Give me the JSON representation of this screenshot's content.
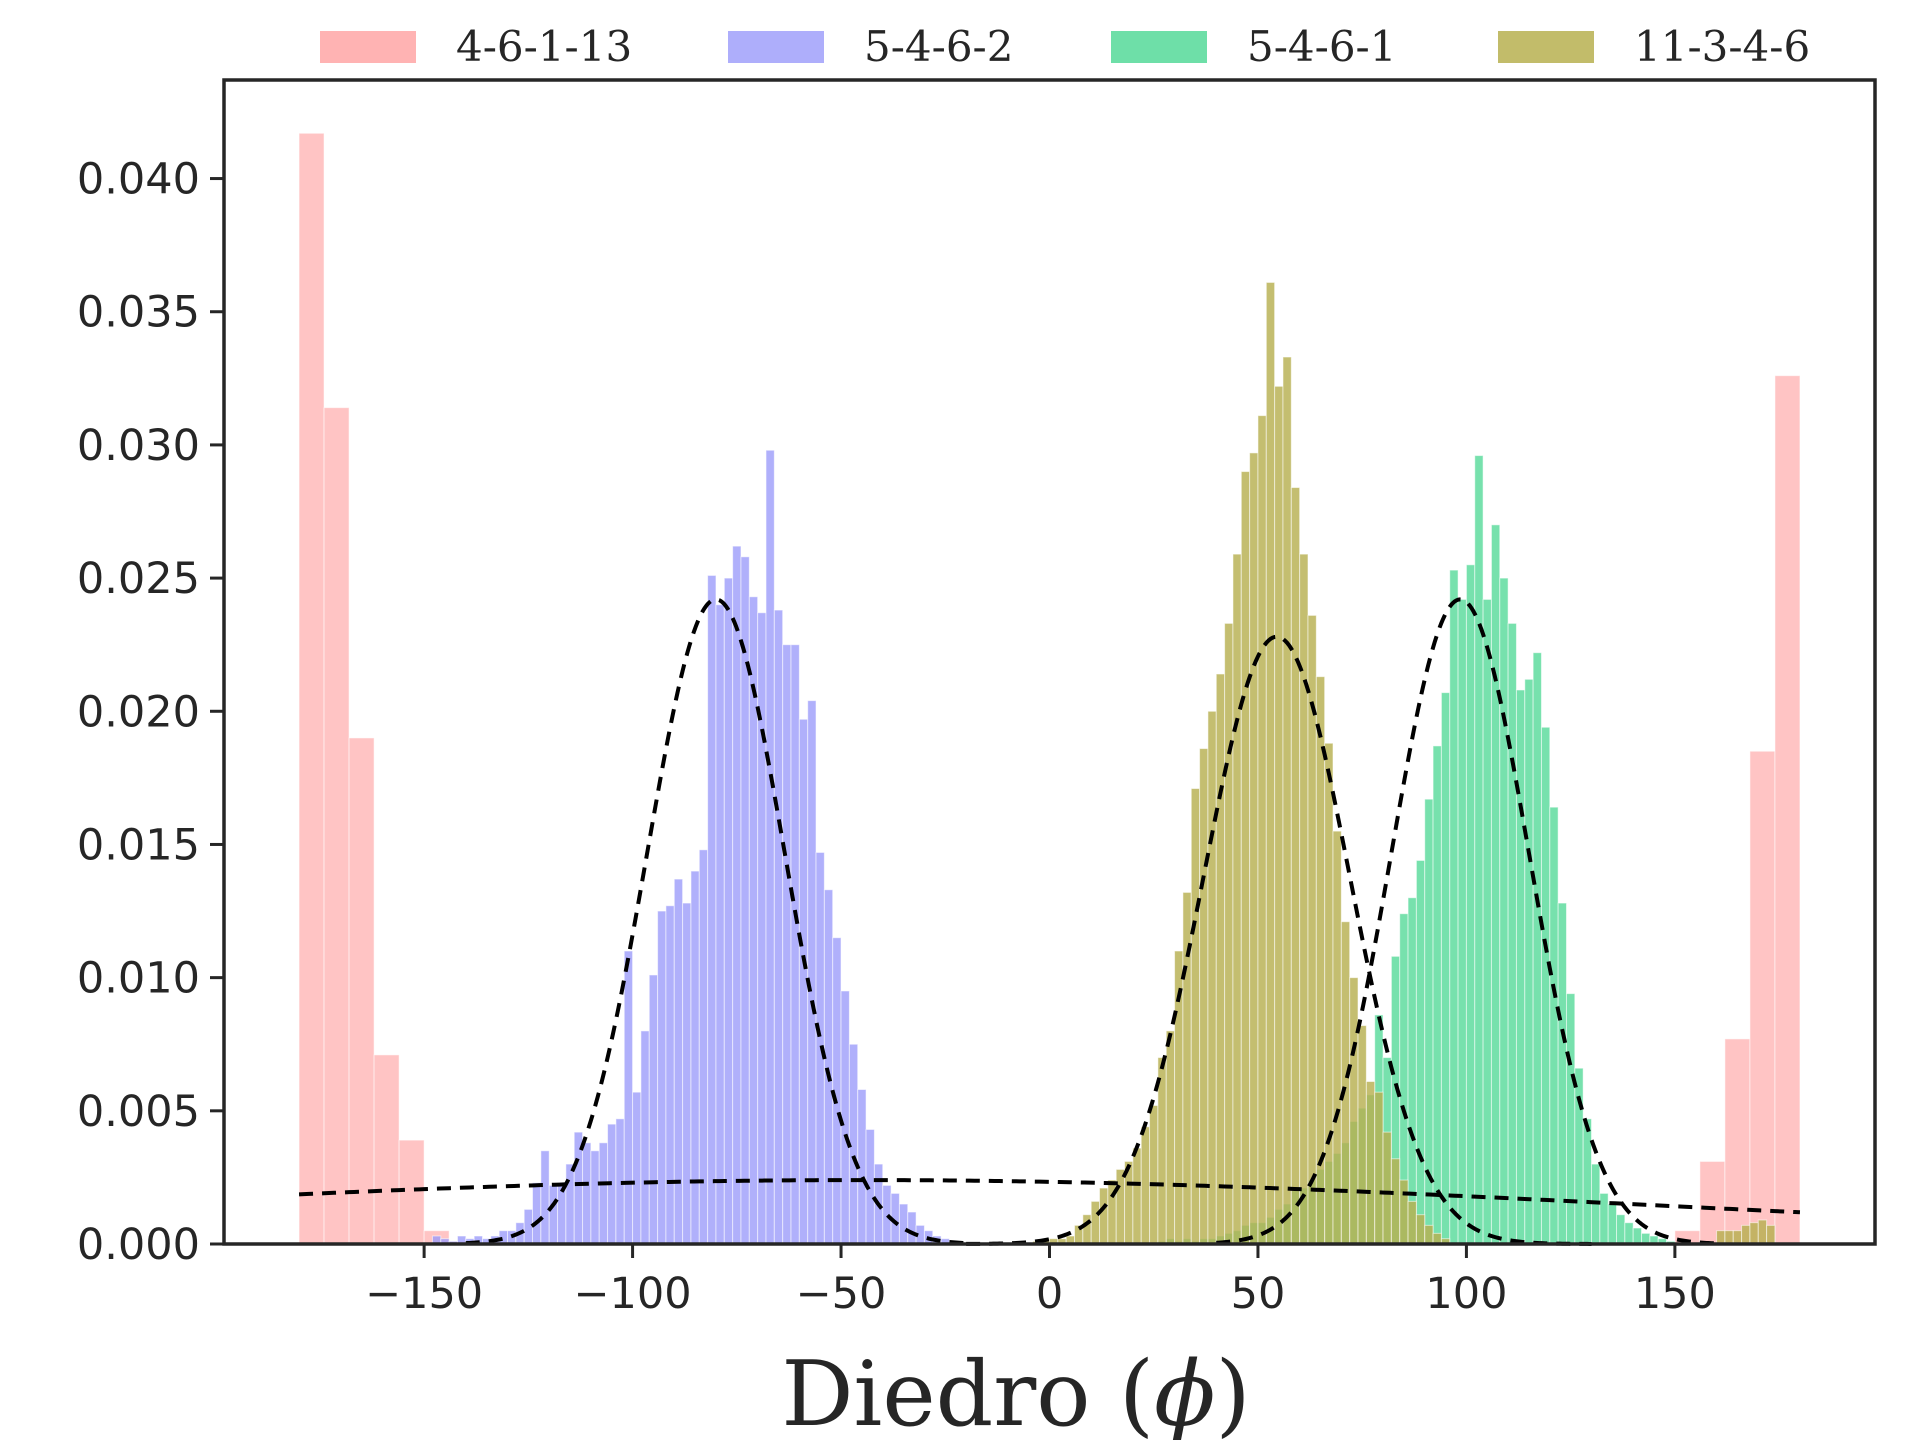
{
  "chart_data": {
    "type": "bar",
    "title": "",
    "xlabel": "Diedro",
    "xlabel_symbol": "ϕ",
    "ylabel": "",
    "xlim": [
      -198,
      198
    ],
    "ylim": [
      0,
      0.0437
    ],
    "grid": false,
    "legend_placement": "top-center, above axes",
    "xticks": [
      -150,
      -100,
      -50,
      0,
      50,
      100,
      150
    ],
    "yticks": [
      0.0,
      0.005,
      0.01,
      0.015,
      0.02,
      0.025,
      0.03,
      0.035,
      0.04
    ],
    "series": [
      {
        "name": "4-6-1-13",
        "color": "#ffb3b3",
        "bins": [
          [
            -180,
            -174,
            0.0417
          ],
          [
            -174,
            -168,
            0.0314
          ],
          [
            -168,
            -162,
            0.019
          ],
          [
            -162,
            -156,
            0.0071
          ],
          [
            -156,
            -150,
            0.0039
          ],
          [
            -150,
            -144,
            0.0005
          ],
          [
            -144,
            -138,
            0.0001
          ],
          [
            150,
            156,
            0.0005
          ],
          [
            156,
            162,
            0.0031
          ],
          [
            162,
            168,
            0.0077
          ],
          [
            168,
            174,
            0.0185
          ],
          [
            174,
            180,
            0.0326
          ]
        ]
      },
      {
        "name": "5-4-6-2",
        "color": "#9a9afa",
        "bins": [
          [
            -148,
            -146,
            0.0003
          ],
          [
            -146,
            -144,
            0.0002
          ],
          [
            -144,
            -142,
            0.0001
          ],
          [
            -142,
            -140,
            0.0003
          ],
          [
            -140,
            -138,
            0.0002
          ],
          [
            -138,
            -136,
            0.0003
          ],
          [
            -136,
            -134,
            0.0002
          ],
          [
            -134,
            -132,
            0.0003
          ],
          [
            -132,
            -130,
            0.0005
          ],
          [
            -130,
            -128,
            0.0005
          ],
          [
            -128,
            -126,
            0.0008
          ],
          [
            -126,
            -124,
            0.0013
          ],
          [
            -124,
            -122,
            0.0023
          ],
          [
            -122,
            -120,
            0.0035
          ],
          [
            -120,
            -118,
            0.0022
          ],
          [
            -118,
            -116,
            0.0023
          ],
          [
            -116,
            -114,
            0.003
          ],
          [
            -114,
            -112,
            0.0042
          ],
          [
            -112,
            -110,
            0.0038
          ],
          [
            -110,
            -108,
            0.0035
          ],
          [
            -108,
            -106,
            0.0038
          ],
          [
            -106,
            -104,
            0.0045
          ],
          [
            -104,
            -102,
            0.0047
          ],
          [
            -102,
            -100,
            0.011
          ],
          [
            -100,
            -98,
            0.0057
          ],
          [
            -98,
            -96,
            0.008
          ],
          [
            -96,
            -94,
            0.0101
          ],
          [
            -94,
            -92,
            0.0125
          ],
          [
            -92,
            -90,
            0.0127
          ],
          [
            -90,
            -88,
            0.0137
          ],
          [
            -88,
            -86,
            0.0128
          ],
          [
            -86,
            -84,
            0.014
          ],
          [
            -84,
            -82,
            0.0148
          ],
          [
            -82,
            -80,
            0.0251
          ],
          [
            -80,
            -78,
            0.024
          ],
          [
            -78,
            -76,
            0.025
          ],
          [
            -76,
            -74,
            0.0262
          ],
          [
            -74,
            -72,
            0.0258
          ],
          [
            -72,
            -70,
            0.0243
          ],
          [
            -70,
            -68,
            0.0237
          ],
          [
            -68,
            -66,
            0.0298
          ],
          [
            -66,
            -64,
            0.0238
          ],
          [
            -64,
            -62,
            0.0225
          ],
          [
            -62,
            -60,
            0.0225
          ],
          [
            -60,
            -58,
            0.0197
          ],
          [
            -58,
            -56,
            0.0204
          ],
          [
            -56,
            -54,
            0.0147
          ],
          [
            -54,
            -52,
            0.0133
          ],
          [
            -52,
            -50,
            0.0115
          ],
          [
            -50,
            -48,
            0.0095
          ],
          [
            -48,
            -46,
            0.0075
          ],
          [
            -46,
            -44,
            0.0058
          ],
          [
            -44,
            -42,
            0.0043
          ],
          [
            -42,
            -40,
            0.003
          ],
          [
            -40,
            -38,
            0.0022
          ],
          [
            -38,
            -36,
            0.0019
          ],
          [
            -36,
            -34,
            0.0015
          ],
          [
            -34,
            -32,
            0.0012
          ],
          [
            -32,
            -30,
            0.0007
          ],
          [
            -30,
            -28,
            0.0005
          ],
          [
            -28,
            -26,
            0.0003
          ],
          [
            -26,
            -24,
            0.0002
          ],
          [
            -24,
            -22,
            0.0001
          ]
        ]
      },
      {
        "name": "5-4-6-1",
        "color": "#55d999",
        "bins": [
          [
            26,
            28,
            0.0001
          ],
          [
            28,
            30,
            0.0002
          ],
          [
            30,
            32,
            0.0001
          ],
          [
            32,
            34,
            0.0002
          ],
          [
            34,
            36,
            0.0001
          ],
          [
            36,
            38,
            0.0002
          ],
          [
            38,
            40,
            0.0002
          ],
          [
            40,
            42,
            0.0003
          ],
          [
            42,
            44,
            0.0004
          ],
          [
            44,
            46,
            0.0005
          ],
          [
            46,
            48,
            0.0007
          ],
          [
            48,
            50,
            0.0008
          ],
          [
            50,
            52,
            0.0008
          ],
          [
            52,
            54,
            0.001
          ],
          [
            54,
            56,
            0.0013
          ],
          [
            56,
            58,
            0.0015
          ],
          [
            58,
            60,
            0.002
          ],
          [
            60,
            62,
            0.0021
          ],
          [
            62,
            64,
            0.0024
          ],
          [
            64,
            66,
            0.0028
          ],
          [
            66,
            68,
            0.0031
          ],
          [
            68,
            70,
            0.0034
          ],
          [
            70,
            72,
            0.0038
          ],
          [
            72,
            74,
            0.0046
          ],
          [
            74,
            76,
            0.0051
          ],
          [
            76,
            78,
            0.0056
          ],
          [
            78,
            80,
            0.0086
          ],
          [
            80,
            82,
            0.007
          ],
          [
            82,
            84,
            0.0108
          ],
          [
            84,
            86,
            0.0124
          ],
          [
            86,
            88,
            0.013
          ],
          [
            88,
            90,
            0.0144
          ],
          [
            90,
            92,
            0.0167
          ],
          [
            92,
            94,
            0.0187
          ],
          [
            94,
            96,
            0.0207
          ],
          [
            96,
            98,
            0.0253
          ],
          [
            98,
            100,
            0.0242
          ],
          [
            100,
            102,
            0.0255
          ],
          [
            102,
            104,
            0.0296
          ],
          [
            104,
            106,
            0.0242
          ],
          [
            106,
            108,
            0.027
          ],
          [
            108,
            110,
            0.025
          ],
          [
            110,
            112,
            0.0233
          ],
          [
            112,
            114,
            0.0208
          ],
          [
            114,
            116,
            0.0212
          ],
          [
            116,
            118,
            0.0222
          ],
          [
            118,
            120,
            0.0194
          ],
          [
            120,
            122,
            0.0164
          ],
          [
            122,
            124,
            0.0128
          ],
          [
            124,
            126,
            0.0094
          ],
          [
            126,
            128,
            0.0066
          ],
          [
            128,
            130,
            0.0047
          ],
          [
            130,
            132,
            0.003
          ],
          [
            132,
            134,
            0.0019
          ],
          [
            134,
            136,
            0.0015
          ],
          [
            136,
            138,
            0.0011
          ],
          [
            138,
            140,
            0.0008
          ],
          [
            140,
            142,
            0.0006
          ],
          [
            142,
            144,
            0.0004
          ],
          [
            144,
            146,
            0.0003
          ],
          [
            146,
            148,
            0.0002
          ],
          [
            148,
            150,
            0.0001
          ]
        ]
      },
      {
        "name": "11-3-4-6",
        "color": "#b7b050",
        "bins": [
          [
            -4,
            -2,
            0.0001
          ],
          [
            -2,
            0,
            0.0002
          ],
          [
            0,
            2,
            0.0002
          ],
          [
            2,
            4,
            0.0002
          ],
          [
            4,
            6,
            0.0003
          ],
          [
            6,
            8,
            0.0007
          ],
          [
            8,
            10,
            0.0011
          ],
          [
            10,
            12,
            0.0016
          ],
          [
            12,
            14,
            0.0021
          ],
          [
            14,
            16,
            0.0024
          ],
          [
            16,
            18,
            0.0028
          ],
          [
            18,
            20,
            0.0031
          ],
          [
            20,
            22,
            0.0036
          ],
          [
            22,
            24,
            0.0044
          ],
          [
            24,
            26,
            0.0052
          ],
          [
            26,
            28,
            0.007
          ],
          [
            28,
            30,
            0.008
          ],
          [
            30,
            32,
            0.011
          ],
          [
            32,
            34,
            0.0132
          ],
          [
            34,
            36,
            0.0171
          ],
          [
            36,
            38,
            0.0186
          ],
          [
            38,
            40,
            0.02
          ],
          [
            40,
            42,
            0.0214
          ],
          [
            42,
            44,
            0.0233
          ],
          [
            44,
            46,
            0.0259
          ],
          [
            46,
            48,
            0.029
          ],
          [
            48,
            50,
            0.0297
          ],
          [
            50,
            52,
            0.0311
          ],
          [
            52,
            54,
            0.0361
          ],
          [
            54,
            56,
            0.0322
          ],
          [
            56,
            58,
            0.0333
          ],
          [
            58,
            60,
            0.0284
          ],
          [
            60,
            62,
            0.0259
          ],
          [
            62,
            64,
            0.0236
          ],
          [
            64,
            66,
            0.0213
          ],
          [
            66,
            68,
            0.0188
          ],
          [
            68,
            70,
            0.0155
          ],
          [
            70,
            72,
            0.0121
          ],
          [
            72,
            74,
            0.01
          ],
          [
            74,
            76,
            0.0082
          ],
          [
            76,
            78,
            0.0061
          ],
          [
            78,
            80,
            0.0057
          ],
          [
            80,
            82,
            0.0042
          ],
          [
            82,
            84,
            0.0032
          ],
          [
            84,
            86,
            0.0024
          ],
          [
            86,
            88,
            0.0016
          ],
          [
            88,
            90,
            0.0011
          ],
          [
            90,
            92,
            0.0007
          ],
          [
            92,
            94,
            0.0004
          ],
          [
            94,
            96,
            0.0002
          ],
          [
            160,
            162,
            0.0005
          ],
          [
            162,
            164,
            0.0005
          ],
          [
            164,
            166,
            0.0005
          ],
          [
            166,
            168,
            0.0007
          ],
          [
            168,
            170,
            0.0008
          ],
          [
            170,
            172,
            0.0009
          ],
          [
            172,
            174,
            0.0007
          ]
        ]
      }
    ],
    "fit_curves": [
      {
        "type": "gaussian",
        "mean": -80,
        "sigma": 16.5,
        "peak": 0.0242,
        "x_range": [
          -140,
          -20
        ]
      },
      {
        "type": "gaussian",
        "mean": 54.5,
        "sigma": 17.5,
        "peak": 0.0228,
        "x_range": [
          -20,
          130
        ]
      },
      {
        "type": "gaussian",
        "mean": 98.5,
        "sigma": 16.5,
        "peak": 0.0242,
        "x_range": [
          40,
          160
        ]
      },
      {
        "type": "gaussian",
        "mean": -45,
        "sigma": 190,
        "peak": 0.0024,
        "x_range": [
          -180,
          180
        ]
      }
    ]
  }
}
